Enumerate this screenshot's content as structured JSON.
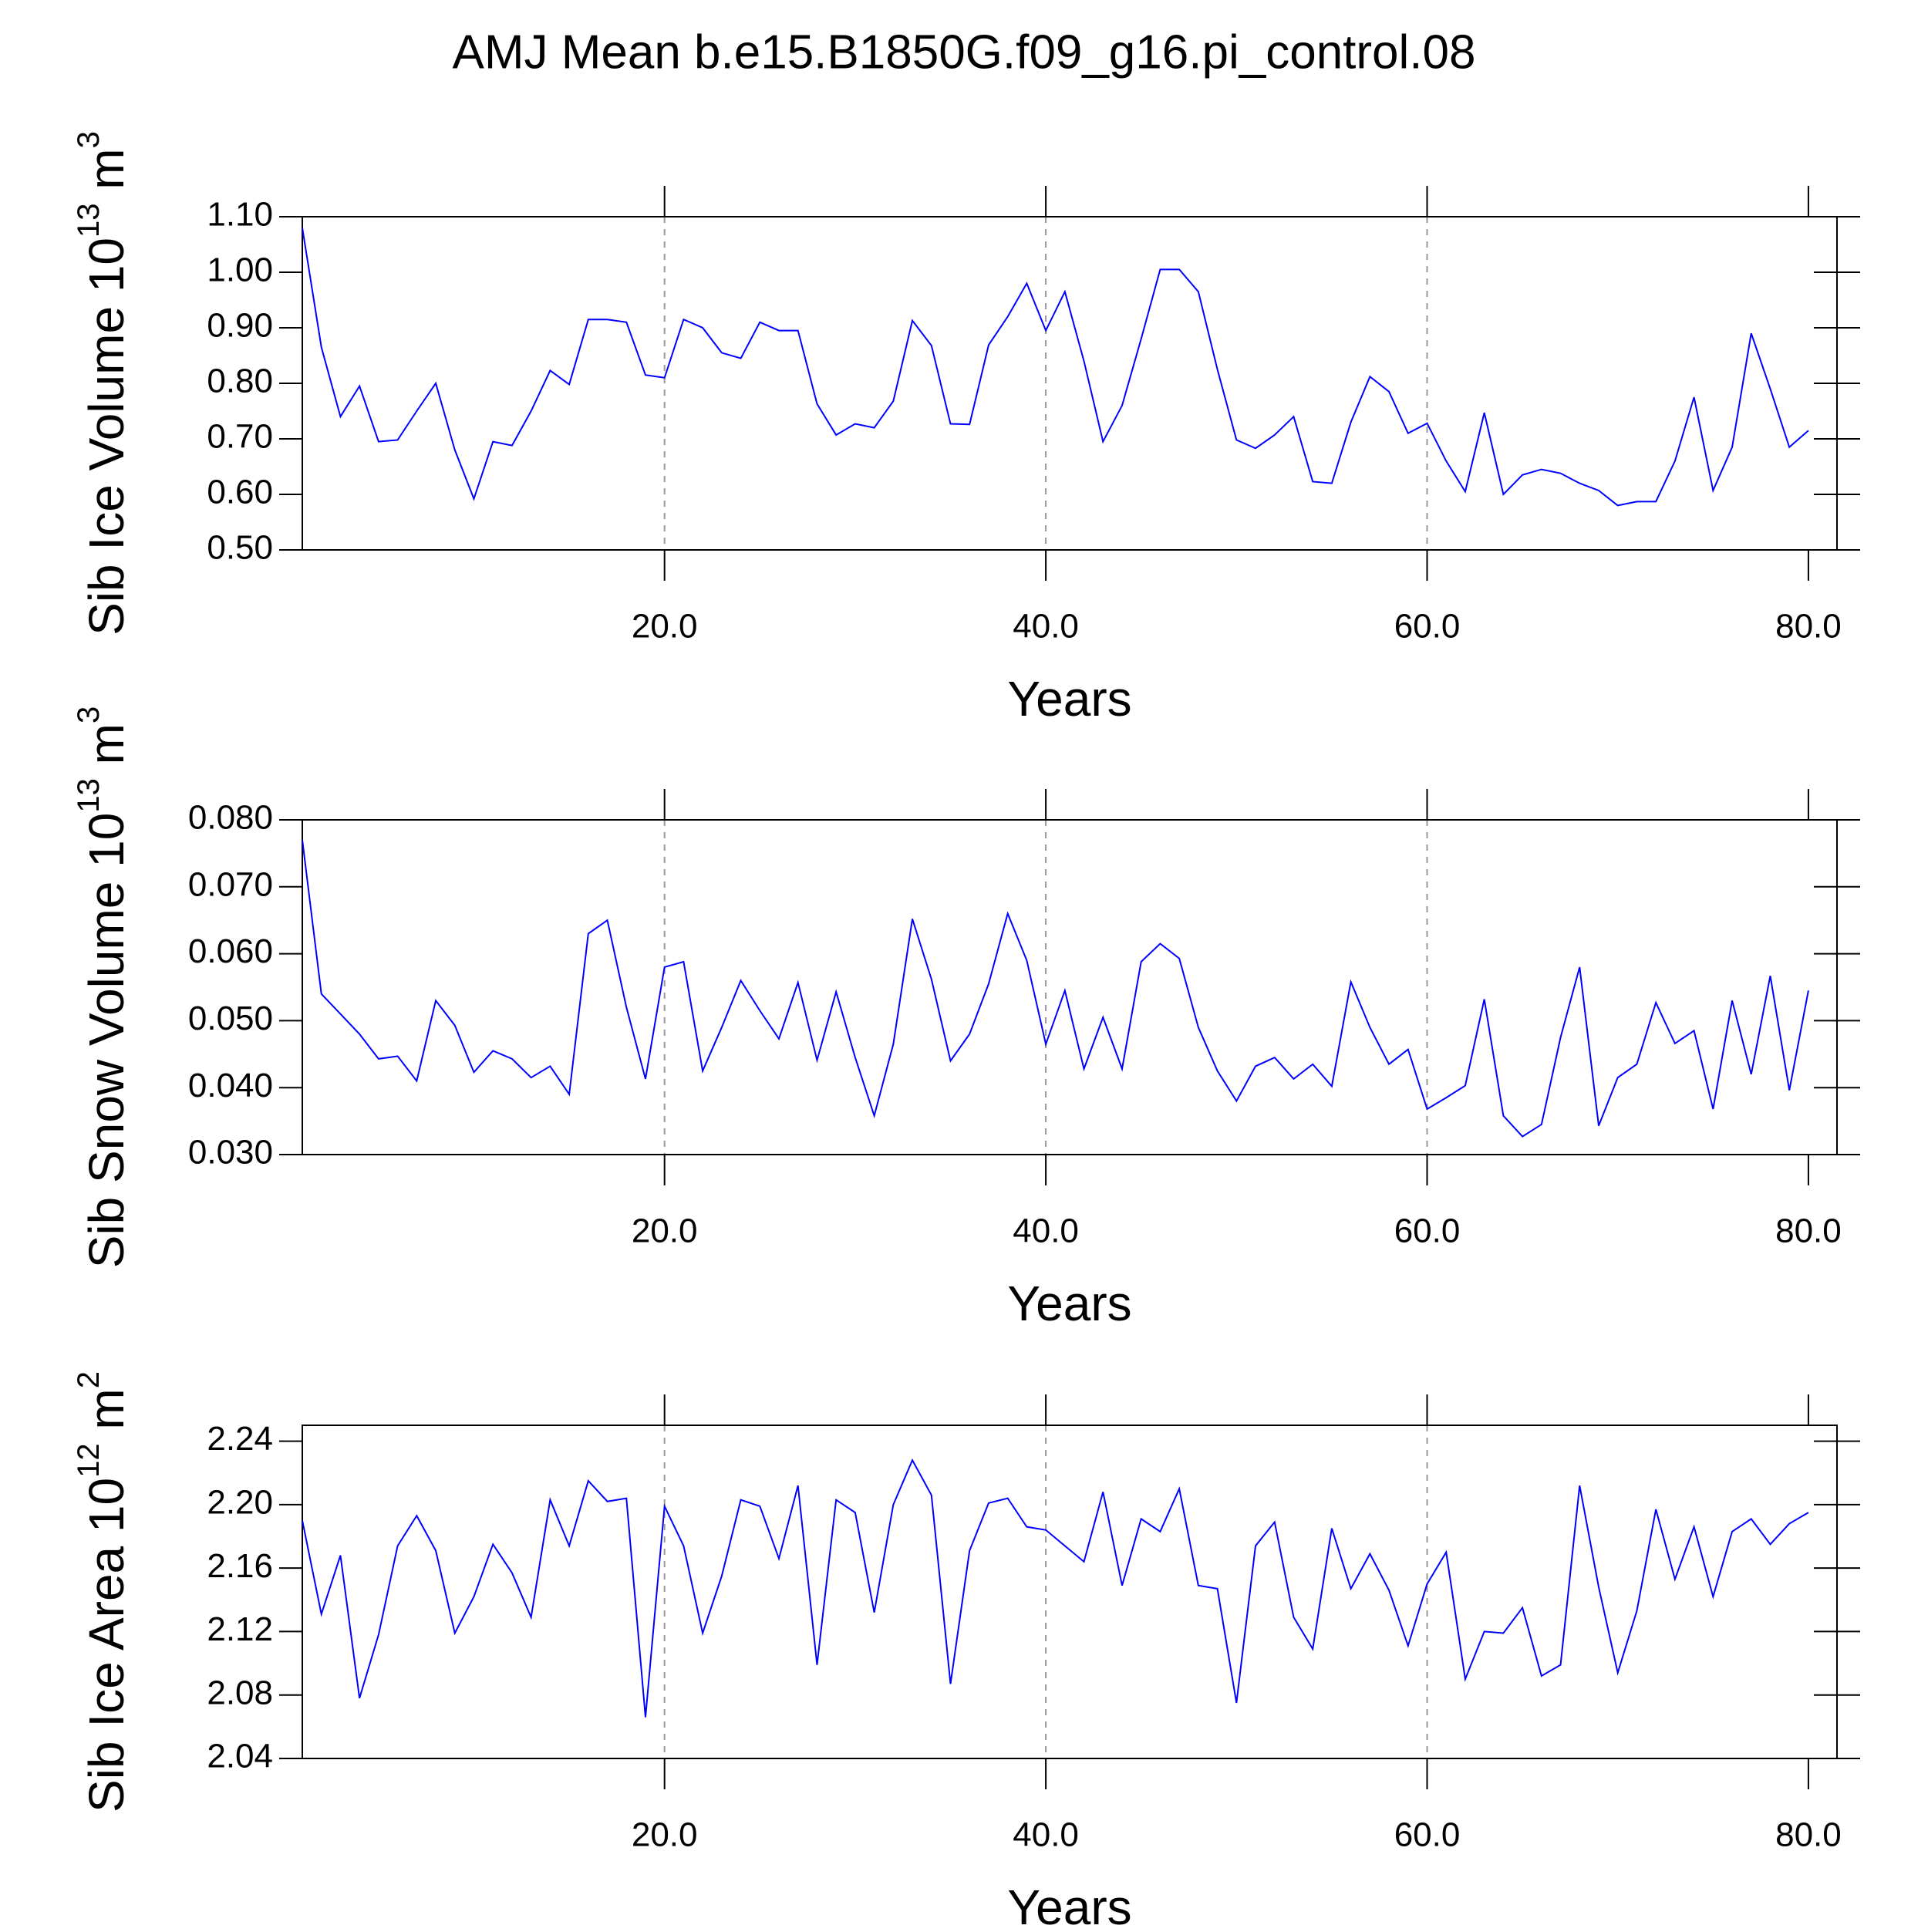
{
  "title": "AMJ Mean b.e15.B1850G.f09_g16.pi_control.08",
  "chart_data": [
    {
      "type": "line",
      "ylabel": [
        "Sib Ice Volume 10",
        "13",
        " m",
        "3"
      ],
      "xlabel": "Years",
      "color": "#0000ff",
      "grid": true,
      "xlim": [
        1,
        81.5
      ],
      "xticks": [
        {
          "value": 20,
          "label": "20.0"
        },
        {
          "value": 40,
          "label": "40.0"
        },
        {
          "value": 60,
          "label": "60.0"
        },
        {
          "value": 80,
          "label": "80.0"
        }
      ],
      "ylim": [
        0.5,
        1.1
      ],
      "yticks": [
        {
          "value": 0.5,
          "label": "0.50"
        },
        {
          "value": 0.6,
          "label": "0.60"
        },
        {
          "value": 0.7,
          "label": "0.70"
        },
        {
          "value": 0.8,
          "label": "0.80"
        },
        {
          "value": 0.9,
          "label": "0.90"
        },
        {
          "value": 1.0,
          "label": "1.00"
        },
        {
          "value": 1.1,
          "label": "1.10"
        }
      ],
      "x": [
        1,
        2,
        3,
        4,
        5,
        6,
        7,
        8,
        9,
        10,
        11,
        12,
        13,
        14,
        15,
        16,
        17,
        18,
        19,
        20,
        21,
        22,
        23,
        24,
        25,
        26,
        27,
        28,
        29,
        30,
        31,
        32,
        33,
        34,
        35,
        36,
        37,
        38,
        39,
        40,
        41,
        42,
        43,
        44,
        45,
        46,
        47,
        48,
        49,
        50,
        51,
        52,
        53,
        54,
        55,
        56,
        57,
        58,
        59,
        60,
        61,
        62,
        63,
        64,
        65,
        66,
        67,
        68,
        69,
        70,
        71,
        72,
        73,
        74,
        75,
        76,
        77,
        78,
        79,
        80
      ],
      "values": [
        1.08,
        0.865,
        0.74,
        0.795,
        0.695,
        0.698,
        0.75,
        0.8,
        0.68,
        0.592,
        0.695,
        0.688,
        0.75,
        0.823,
        0.798,
        0.915,
        0.915,
        0.91,
        0.815,
        0.81,
        0.915,
        0.9,
        0.855,
        0.845,
        0.91,
        0.895,
        0.895,
        0.763,
        0.707,
        0.727,
        0.72,
        0.768,
        0.913,
        0.868,
        0.727,
        0.726,
        0.869,
        0.92,
        0.98,
        0.895,
        0.965,
        0.84,
        0.695,
        0.76,
        0.88,
        1.005,
        1.005,
        0.965,
        0.825,
        0.698,
        0.683,
        0.707,
        0.74,
        0.623,
        0.62,
        0.73,
        0.812,
        0.785,
        0.71,
        0.728,
        0.66,
        0.605,
        0.747,
        0.6,
        0.635,
        0.645,
        0.638,
        0.62,
        0.607,
        0.58,
        0.587,
        0.587,
        0.66,
        0.775,
        0.607,
        0.685,
        0.89,
        0.79,
        0.685,
        0.715
      ]
    },
    {
      "type": "line",
      "ylabel": [
        "Sib Snow Volume 10",
        "13",
        " m",
        "3"
      ],
      "xlabel": "Years",
      "color": "#0000ff",
      "grid": true,
      "xlim": [
        1,
        81.5
      ],
      "xticks": [
        {
          "value": 20,
          "label": "20.0"
        },
        {
          "value": 40,
          "label": "40.0"
        },
        {
          "value": 60,
          "label": "60.0"
        },
        {
          "value": 80,
          "label": "80.0"
        }
      ],
      "ylim": [
        0.03,
        0.08
      ],
      "yticks": [
        {
          "value": 0.03,
          "label": "0.030"
        },
        {
          "value": 0.04,
          "label": "0.040"
        },
        {
          "value": 0.05,
          "label": "0.050"
        },
        {
          "value": 0.06,
          "label": "0.060"
        },
        {
          "value": 0.07,
          "label": "0.070"
        },
        {
          "value": 0.08,
          "label": "0.080"
        }
      ],
      "x": [
        1,
        2,
        3,
        4,
        5,
        6,
        7,
        8,
        9,
        10,
        11,
        12,
        13,
        14,
        15,
        16,
        17,
        18,
        19,
        20,
        21,
        22,
        23,
        24,
        25,
        26,
        27,
        28,
        29,
        30,
        31,
        32,
        33,
        34,
        35,
        36,
        37,
        38,
        39,
        40,
        41,
        42,
        43,
        44,
        45,
        46,
        47,
        48,
        49,
        50,
        51,
        52,
        53,
        54,
        55,
        56,
        57,
        58,
        59,
        60,
        61,
        62,
        63,
        64,
        65,
        66,
        67,
        68,
        69,
        70,
        71,
        72,
        73,
        74,
        75,
        76,
        77,
        78,
        79,
        80
      ],
      "values": [
        0.077,
        0.054,
        0.051,
        0.048,
        0.0443,
        0.0447,
        0.041,
        0.053,
        0.0493,
        0.0423,
        0.0455,
        0.0443,
        0.0415,
        0.0432,
        0.039,
        0.063,
        0.065,
        0.052,
        0.0413,
        0.058,
        0.0588,
        0.0425,
        0.049,
        0.056,
        0.0515,
        0.0473,
        0.0557,
        0.0441,
        0.0543,
        0.0445,
        0.0358,
        0.0465,
        0.0652,
        0.0562,
        0.044,
        0.048,
        0.0555,
        0.066,
        0.059,
        0.0465,
        0.0545,
        0.0428,
        0.0505,
        0.0428,
        0.0588,
        0.0615,
        0.0593,
        0.049,
        0.0425,
        0.038,
        0.0432,
        0.0445,
        0.0413,
        0.0435,
        0.0402,
        0.0558,
        0.049,
        0.0435,
        0.0457,
        0.0368,
        0.0385,
        0.0403,
        0.0532,
        0.0358,
        0.0327,
        0.0345,
        0.0475,
        0.058,
        0.0343,
        0.0415,
        0.0435,
        0.0527,
        0.0466,
        0.0485,
        0.0368,
        0.053,
        0.042,
        0.0567,
        0.0396,
        0.0545
      ]
    },
    {
      "type": "line",
      "ylabel": [
        "Sib Ice Area 10",
        "12",
        " m",
        "2"
      ],
      "xlabel": "Years",
      "color": "#0000ff",
      "grid": true,
      "xlim": [
        1,
        81.5
      ],
      "xticks": [
        {
          "value": 20,
          "label": "20.0"
        },
        {
          "value": 40,
          "label": "40.0"
        },
        {
          "value": 60,
          "label": "60.0"
        },
        {
          "value": 80,
          "label": "80.0"
        }
      ],
      "ylim": [
        2.04,
        2.25
      ],
      "yticks": [
        2.04,
        2.08,
        2.12,
        2.16,
        {
          "value": 2.2,
          "label": "2.20"
        },
        2.24
      ],
      "x": [
        1,
        2,
        3,
        4,
        5,
        6,
        7,
        8,
        9,
        10,
        11,
        12,
        13,
        14,
        15,
        16,
        17,
        18,
        19,
        20,
        21,
        22,
        23,
        24,
        25,
        26,
        27,
        28,
        29,
        30,
        31,
        32,
        33,
        34,
        35,
        36,
        37,
        38,
        39,
        40,
        41,
        42,
        43,
        44,
        45,
        46,
        47,
        48,
        49,
        50,
        51,
        52,
        53,
        54,
        55,
        56,
        57,
        58,
        59,
        60,
        61,
        62,
        63,
        64,
        65,
        66,
        67,
        68,
        69,
        70,
        71,
        72,
        73,
        74,
        75,
        76,
        77,
        78,
        79,
        80
      ],
      "values": [
        2.19,
        2.131,
        2.168,
        2.078,
        2.118,
        2.174,
        2.193,
        2.171,
        2.119,
        2.142,
        2.175,
        2.157,
        2.129,
        2.203,
        2.174,
        2.215,
        2.202,
        2.204,
        2.066,
        2.199,
        2.174,
        2.119,
        2.155,
        2.203,
        2.199,
        2.166,
        2.212,
        2.099,
        2.203,
        2.195,
        2.132,
        2.2,
        2.228,
        2.206,
        2.087,
        2.171,
        2.201,
        2.204,
        2.186,
        2.184,
        2.174,
        2.164,
        2.208,
        2.149,
        2.191,
        2.183,
        2.21,
        2.149,
        2.147,
        2.075,
        2.174,
        2.189,
        2.129,
        2.109,
        2.185,
        2.147,
        2.169,
        2.146,
        2.111,
        2.15,
        2.17,
        2.09,
        2.12,
        2.119,
        2.135,
        2.092,
        2.099,
        2.212,
        2.148,
        2.094,
        2.133,
        2.197,
        2.153,
        2.186,
        2.142,
        2.183,
        2.191,
        2.175,
        2.188,
        2.195
      ]
    }
  ]
}
